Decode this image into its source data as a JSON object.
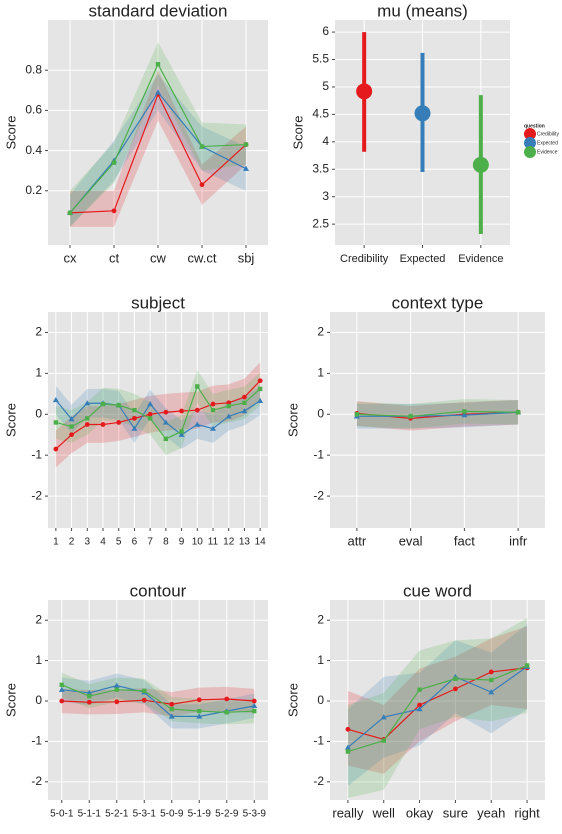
{
  "chart_data": [
    {
      "type": "line",
      "title": "standard deviation",
      "ylabel": "Score",
      "categories": [
        "cx",
        "ct",
        "cw",
        "cw.ct",
        "sbj"
      ],
      "ylim": [
        -0.07,
        1.05
      ],
      "yticks": [
        0.2,
        0.4,
        0.6,
        0.8
      ],
      "grid": true,
      "series": [
        {
          "color": "#e41a1c",
          "marker": "circle",
          "values": [
            0.09,
            0.1,
            0.68,
            0.23,
            0.43
          ],
          "lower": [
            0.02,
            0.02,
            0.55,
            0.13,
            0.33
          ],
          "upper": [
            0.2,
            0.2,
            0.8,
            0.33,
            0.52
          ]
        },
        {
          "color": "#377eb8",
          "marker": "triangle",
          "values": [
            0.09,
            0.35,
            0.69,
            0.42,
            0.31
          ],
          "lower": [
            0.02,
            0.25,
            0.6,
            0.3,
            0.2
          ],
          "upper": [
            0.18,
            0.45,
            0.78,
            0.52,
            0.42
          ]
        },
        {
          "color": "#4daf4a",
          "marker": "square",
          "values": [
            0.09,
            0.34,
            0.83,
            0.42,
            0.43
          ],
          "lower": [
            0.02,
            0.24,
            0.72,
            0.3,
            0.33
          ],
          "upper": [
            0.2,
            0.44,
            0.94,
            0.54,
            0.53
          ]
        }
      ]
    },
    {
      "type": "pointrange",
      "title": "mu (means)",
      "ylabel": "Score",
      "categories": [
        "Credibility",
        "Expected",
        "Evidence"
      ],
      "values": [
        4.92,
        4.52,
        3.58
      ],
      "lower": [
        3.82,
        3.45,
        2.32
      ],
      "upper": [
        6.0,
        5.62,
        4.85
      ],
      "colors": [
        "#e41a1c",
        "#377eb8",
        "#4daf4a"
      ],
      "legend_title": "question",
      "ylim": [
        2.12,
        6.22
      ],
      "yticks": [
        2.5,
        3.0,
        3.5,
        4.0,
        4.5,
        5.0,
        5.5,
        6.0
      ],
      "grid": true
    },
    {
      "type": "line",
      "title": "subject",
      "ylabel": "Score",
      "categories": [
        "1",
        "2",
        "3",
        "4",
        "5",
        "6",
        "7",
        "8",
        "9",
        "10",
        "11",
        "12",
        "13",
        "14"
      ],
      "ylim": [
        -2.78,
        2.5
      ],
      "yticks": [
        -2,
        -1,
        0,
        1,
        2
      ],
      "grid": true,
      "series": [
        {
          "color": "#e41a1c",
          "marker": "circle",
          "values": [
            -0.85,
            -0.5,
            -0.25,
            -0.25,
            -0.2,
            -0.1,
            0.0,
            0.05,
            0.08,
            0.1,
            0.25,
            0.28,
            0.42,
            0.82
          ],
          "lower": [
            -1.3,
            -0.95,
            -0.7,
            -0.7,
            -0.65,
            -0.55,
            -0.45,
            -0.4,
            -0.37,
            -0.35,
            -0.2,
            -0.17,
            -0.03,
            0.37
          ],
          "upper": [
            -0.4,
            -0.05,
            0.2,
            0.2,
            0.25,
            0.35,
            0.45,
            0.5,
            0.53,
            0.55,
            0.7,
            0.73,
            0.87,
            1.27
          ]
        },
        {
          "color": "#377eb8",
          "marker": "triangle",
          "values": [
            0.35,
            -0.12,
            0.27,
            0.27,
            0.22,
            -0.35,
            0.25,
            -0.2,
            -0.5,
            -0.25,
            -0.35,
            -0.05,
            0.08,
            0.33
          ],
          "lower": [
            0,
            -0.47,
            -0.08,
            -0.08,
            -0.13,
            -0.7,
            -0.1,
            -0.55,
            -0.85,
            -0.6,
            -0.7,
            -0.4,
            -0.27,
            -0.02
          ],
          "upper": [
            0.7,
            0.23,
            0.62,
            0.62,
            0.57,
            0,
            0.6,
            0.15,
            -0.15,
            0.1,
            0,
            0.3,
            0.43,
            0.68
          ]
        },
        {
          "color": "#4daf4a",
          "marker": "square",
          "values": [
            -0.2,
            -0.3,
            -0.1,
            0.25,
            0.22,
            0.1,
            -0.1,
            -0.6,
            -0.42,
            0.68,
            0.1,
            0.2,
            0.28,
            0.62
          ],
          "lower": [
            -0.6,
            -0.7,
            -0.5,
            -0.15,
            -0.18,
            -0.3,
            -0.5,
            -1,
            -0.82,
            0.28,
            -0.3,
            -0.2,
            -0.12,
            0.22
          ],
          "upper": [
            0.2,
            0.1,
            0.3,
            0.65,
            0.62,
            0.5,
            0.3,
            -0.2,
            -0.02,
            1.08,
            0.5,
            0.6,
            0.68,
            1.02
          ]
        }
      ]
    },
    {
      "type": "line",
      "title": "context type",
      "ylabel": "Score",
      "categories": [
        "attr",
        "eval",
        "fact",
        "infr"
      ],
      "ylim": [
        -2.78,
        2.5
      ],
      "yticks": [
        -2,
        -1,
        0,
        1,
        2
      ],
      "grid": true,
      "series": [
        {
          "color": "#e41a1c",
          "marker": "circle",
          "values": [
            0.02,
            -0.1,
            0.0,
            0.05
          ],
          "lower": [
            -0.28,
            -0.4,
            -0.3,
            -0.25
          ],
          "upper": [
            0.32,
            0.2,
            0.3,
            0.35
          ]
        },
        {
          "color": "#377eb8",
          "marker": "triangle",
          "values": [
            -0.05,
            -0.05,
            -0.02,
            0.05
          ],
          "lower": [
            -0.35,
            -0.35,
            -0.32,
            -0.25
          ],
          "upper": [
            0.25,
            0.25,
            0.28,
            0.35
          ]
        },
        {
          "color": "#4daf4a",
          "marker": "square",
          "values": [
            0.0,
            -0.05,
            0.07,
            0.05
          ],
          "lower": [
            -0.3,
            -0.35,
            -0.23,
            -0.25
          ],
          "upper": [
            0.3,
            0.25,
            0.37,
            0.35
          ]
        }
      ]
    },
    {
      "type": "line",
      "title": "contour",
      "ylabel": "Score",
      "categories": [
        "5-0-1",
        "5-1-1",
        "5-2-1",
        "5-3-1",
        "5-0-9",
        "5-1-9",
        "5-2-9",
        "5-3-9"
      ],
      "ylim": [
        -2.45,
        2.5
      ],
      "yticks": [
        -2,
        -1,
        0,
        1,
        2
      ],
      "grid": true,
      "series": [
        {
          "color": "#e41a1c",
          "marker": "circle",
          "values": [
            0.0,
            -0.03,
            -0.02,
            0.02,
            -0.08,
            0.03,
            0.05,
            0.0
          ],
          "lower": [
            -0.3,
            -0.33,
            -0.32,
            -0.28,
            -0.38,
            -0.27,
            -0.25,
            -0.3
          ],
          "upper": [
            0.3,
            0.27,
            0.28,
            0.32,
            0.22,
            0.33,
            0.35,
            0.3
          ]
        },
        {
          "color": "#377eb8",
          "marker": "triangle",
          "values": [
            0.28,
            0.2,
            0.38,
            0.22,
            -0.38,
            -0.38,
            -0.25,
            -0.12
          ],
          "lower": [
            -0.02,
            -0.1,
            0.08,
            -0.08,
            -0.68,
            -0.68,
            -0.55,
            -0.42
          ],
          "upper": [
            0.58,
            0.5,
            0.68,
            0.52,
            -0.08,
            -0.08,
            0.05,
            0.18
          ]
        },
        {
          "color": "#4daf4a",
          "marker": "square",
          "values": [
            0.4,
            0.12,
            0.28,
            0.25,
            -0.2,
            -0.25,
            -0.28,
            -0.25
          ],
          "lower": [
            0.1,
            -0.18,
            -0.02,
            -0.05,
            -0.5,
            -0.55,
            -0.58,
            -0.55
          ],
          "upper": [
            0.7,
            0.42,
            0.58,
            0.55,
            0.1,
            0.05,
            0.02,
            0.05
          ]
        }
      ]
    },
    {
      "type": "line",
      "title": "cue word",
      "ylabel": "Score",
      "categories": [
        "really",
        "well",
        "okay",
        "sure",
        "yeah",
        "right"
      ],
      "ylim": [
        -2.45,
        2.5
      ],
      "yticks": [
        -2,
        -1,
        0,
        1,
        2
      ],
      "grid": true,
      "series": [
        {
          "color": "#e41a1c",
          "marker": "circle",
          "values": [
            -0.7,
            -0.95,
            -0.1,
            0.3,
            0.72,
            0.82
          ],
          "lower": [
            -1.6,
            -1.8,
            -1.0,
            -0.5,
            -0.1,
            -0.2
          ],
          "upper": [
            0.25,
            -0.1,
            0.8,
            1.1,
            1.55,
            1.85
          ]
        },
        {
          "color": "#377eb8",
          "marker": "triangle",
          "values": [
            -1.15,
            -0.4,
            -0.2,
            0.6,
            0.22,
            0.85
          ],
          "lower": [
            -2.1,
            -1.4,
            -1.1,
            -0.3,
            -0.8,
            -0.2
          ],
          "upper": [
            -0.2,
            0.6,
            0.7,
            1.5,
            1.2,
            1.9
          ]
        },
        {
          "color": "#4daf4a",
          "marker": "square",
          "values": [
            -1.25,
            -0.98,
            0.28,
            0.55,
            0.52,
            0.88
          ],
          "lower": [
            -2.4,
            -2.2,
            -0.7,
            -0.4,
            -0.5,
            -0.3
          ],
          "upper": [
            -0.1,
            0.2,
            1.25,
            1.5,
            1.55,
            2.05
          ]
        }
      ]
    }
  ]
}
